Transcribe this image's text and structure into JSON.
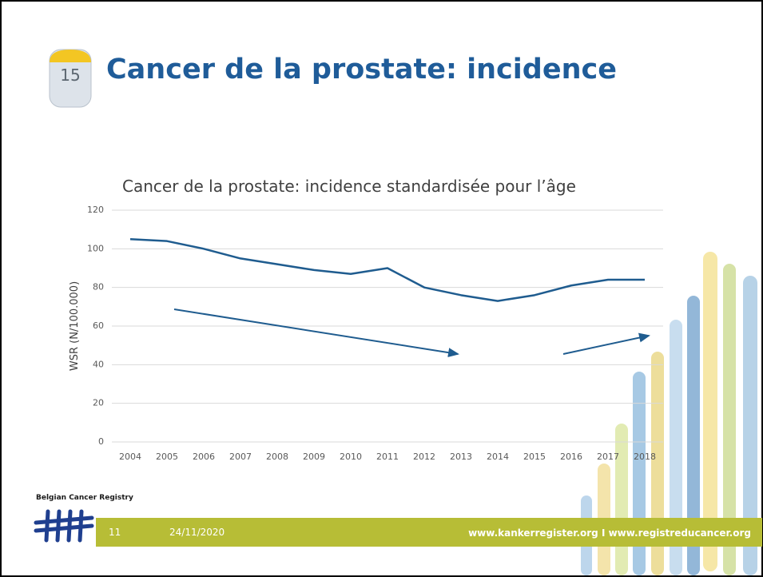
{
  "slide": {
    "title": "Cancer de la prostate: incidence",
    "milestone": "15",
    "logo_text": "Belgian Cancer Registry",
    "footer": {
      "page": "11",
      "date": "24/11/2020",
      "urls": "www.kankerregister.org I www.registreducancer.org"
    }
  },
  "chart_data": {
    "type": "line",
    "title": "Cancer de la prostate: incidence standardisée pour l’âge",
    "y_label": "WSR (N/100.000)",
    "categories": [
      "2004",
      "2005",
      "2006",
      "2007",
      "2008",
      "2009",
      "2010",
      "2011",
      "2012",
      "2013",
      "2014",
      "2015",
      "2016",
      "2017",
      "2018"
    ],
    "values": [
      105,
      104,
      100,
      95,
      92,
      89,
      87,
      90,
      80,
      76,
      73,
      76,
      81,
      84,
      84
    ],
    "color": "#1f5c8f",
    "ylim": [
      0,
      120
    ],
    "yticks": [
      0,
      20,
      40,
      60,
      80,
      100,
      120
    ],
    "grid": true
  }
}
